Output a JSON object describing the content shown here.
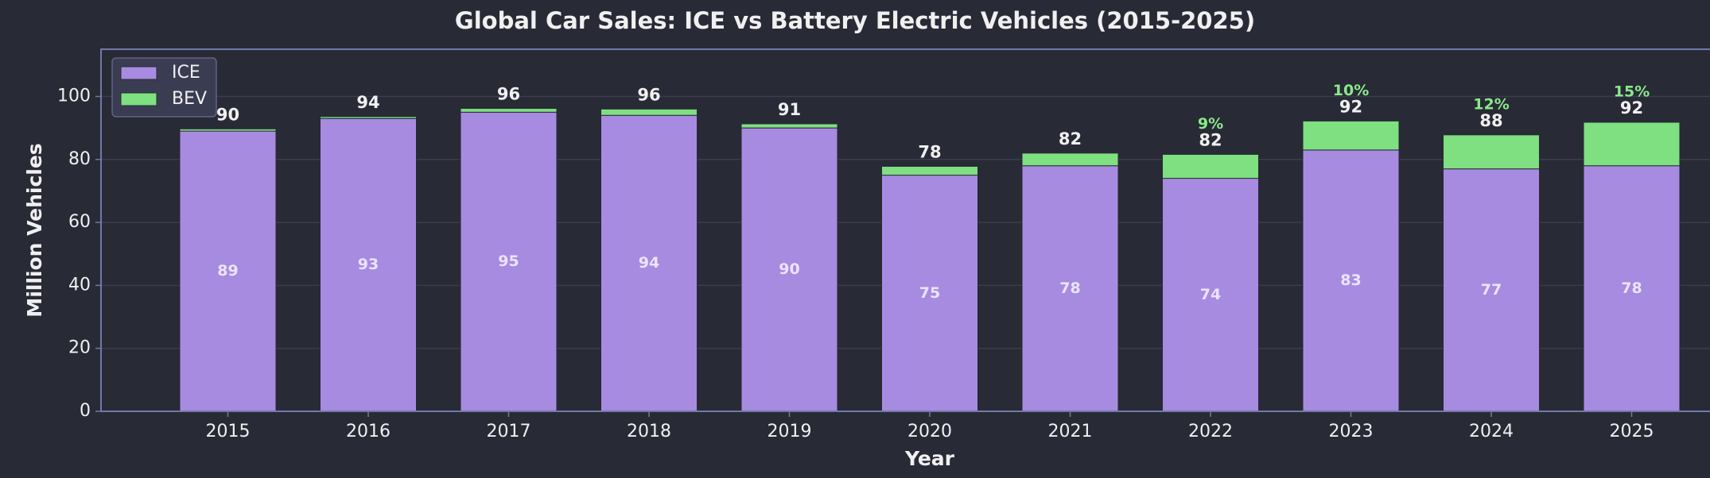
{
  "chart_data": {
    "type": "stacked-bar",
    "title": "Global Car Sales: ICE vs Battery Electric Vehicles (2015-2025)",
    "x_label": "Year",
    "y_label": "Million Vehicles",
    "categories": [
      "2015",
      "2016",
      "2017",
      "2018",
      "2019",
      "2020",
      "2021",
      "2022",
      "2023",
      "2024",
      "2025"
    ],
    "series": [
      {
        "name": "ICE",
        "color": "#a78be0",
        "values": [
          89,
          93,
          95,
          94,
          90,
          75,
          78,
          74,
          83,
          77,
          78
        ]
      },
      {
        "name": "BEV",
        "color": "#7ee081",
        "values": [
          0.7,
          0.6,
          1.2,
          2,
          1.3,
          2.8,
          4,
          7.6,
          9.2,
          10.8,
          13.8
        ]
      }
    ],
    "totals": [
      90,
      94,
      96,
      96,
      91,
      78,
      82,
      82,
      92,
      88,
      92
    ],
    "share_labels": [
      null,
      null,
      null,
      null,
      null,
      null,
      null,
      "9%",
      "10%",
      "12%",
      "15%"
    ],
    "ylim": [
      0,
      115
    ],
    "yticks": [
      0,
      20,
      40,
      60,
      80,
      100
    ],
    "grid": true,
    "legend": "upper left"
  }
}
